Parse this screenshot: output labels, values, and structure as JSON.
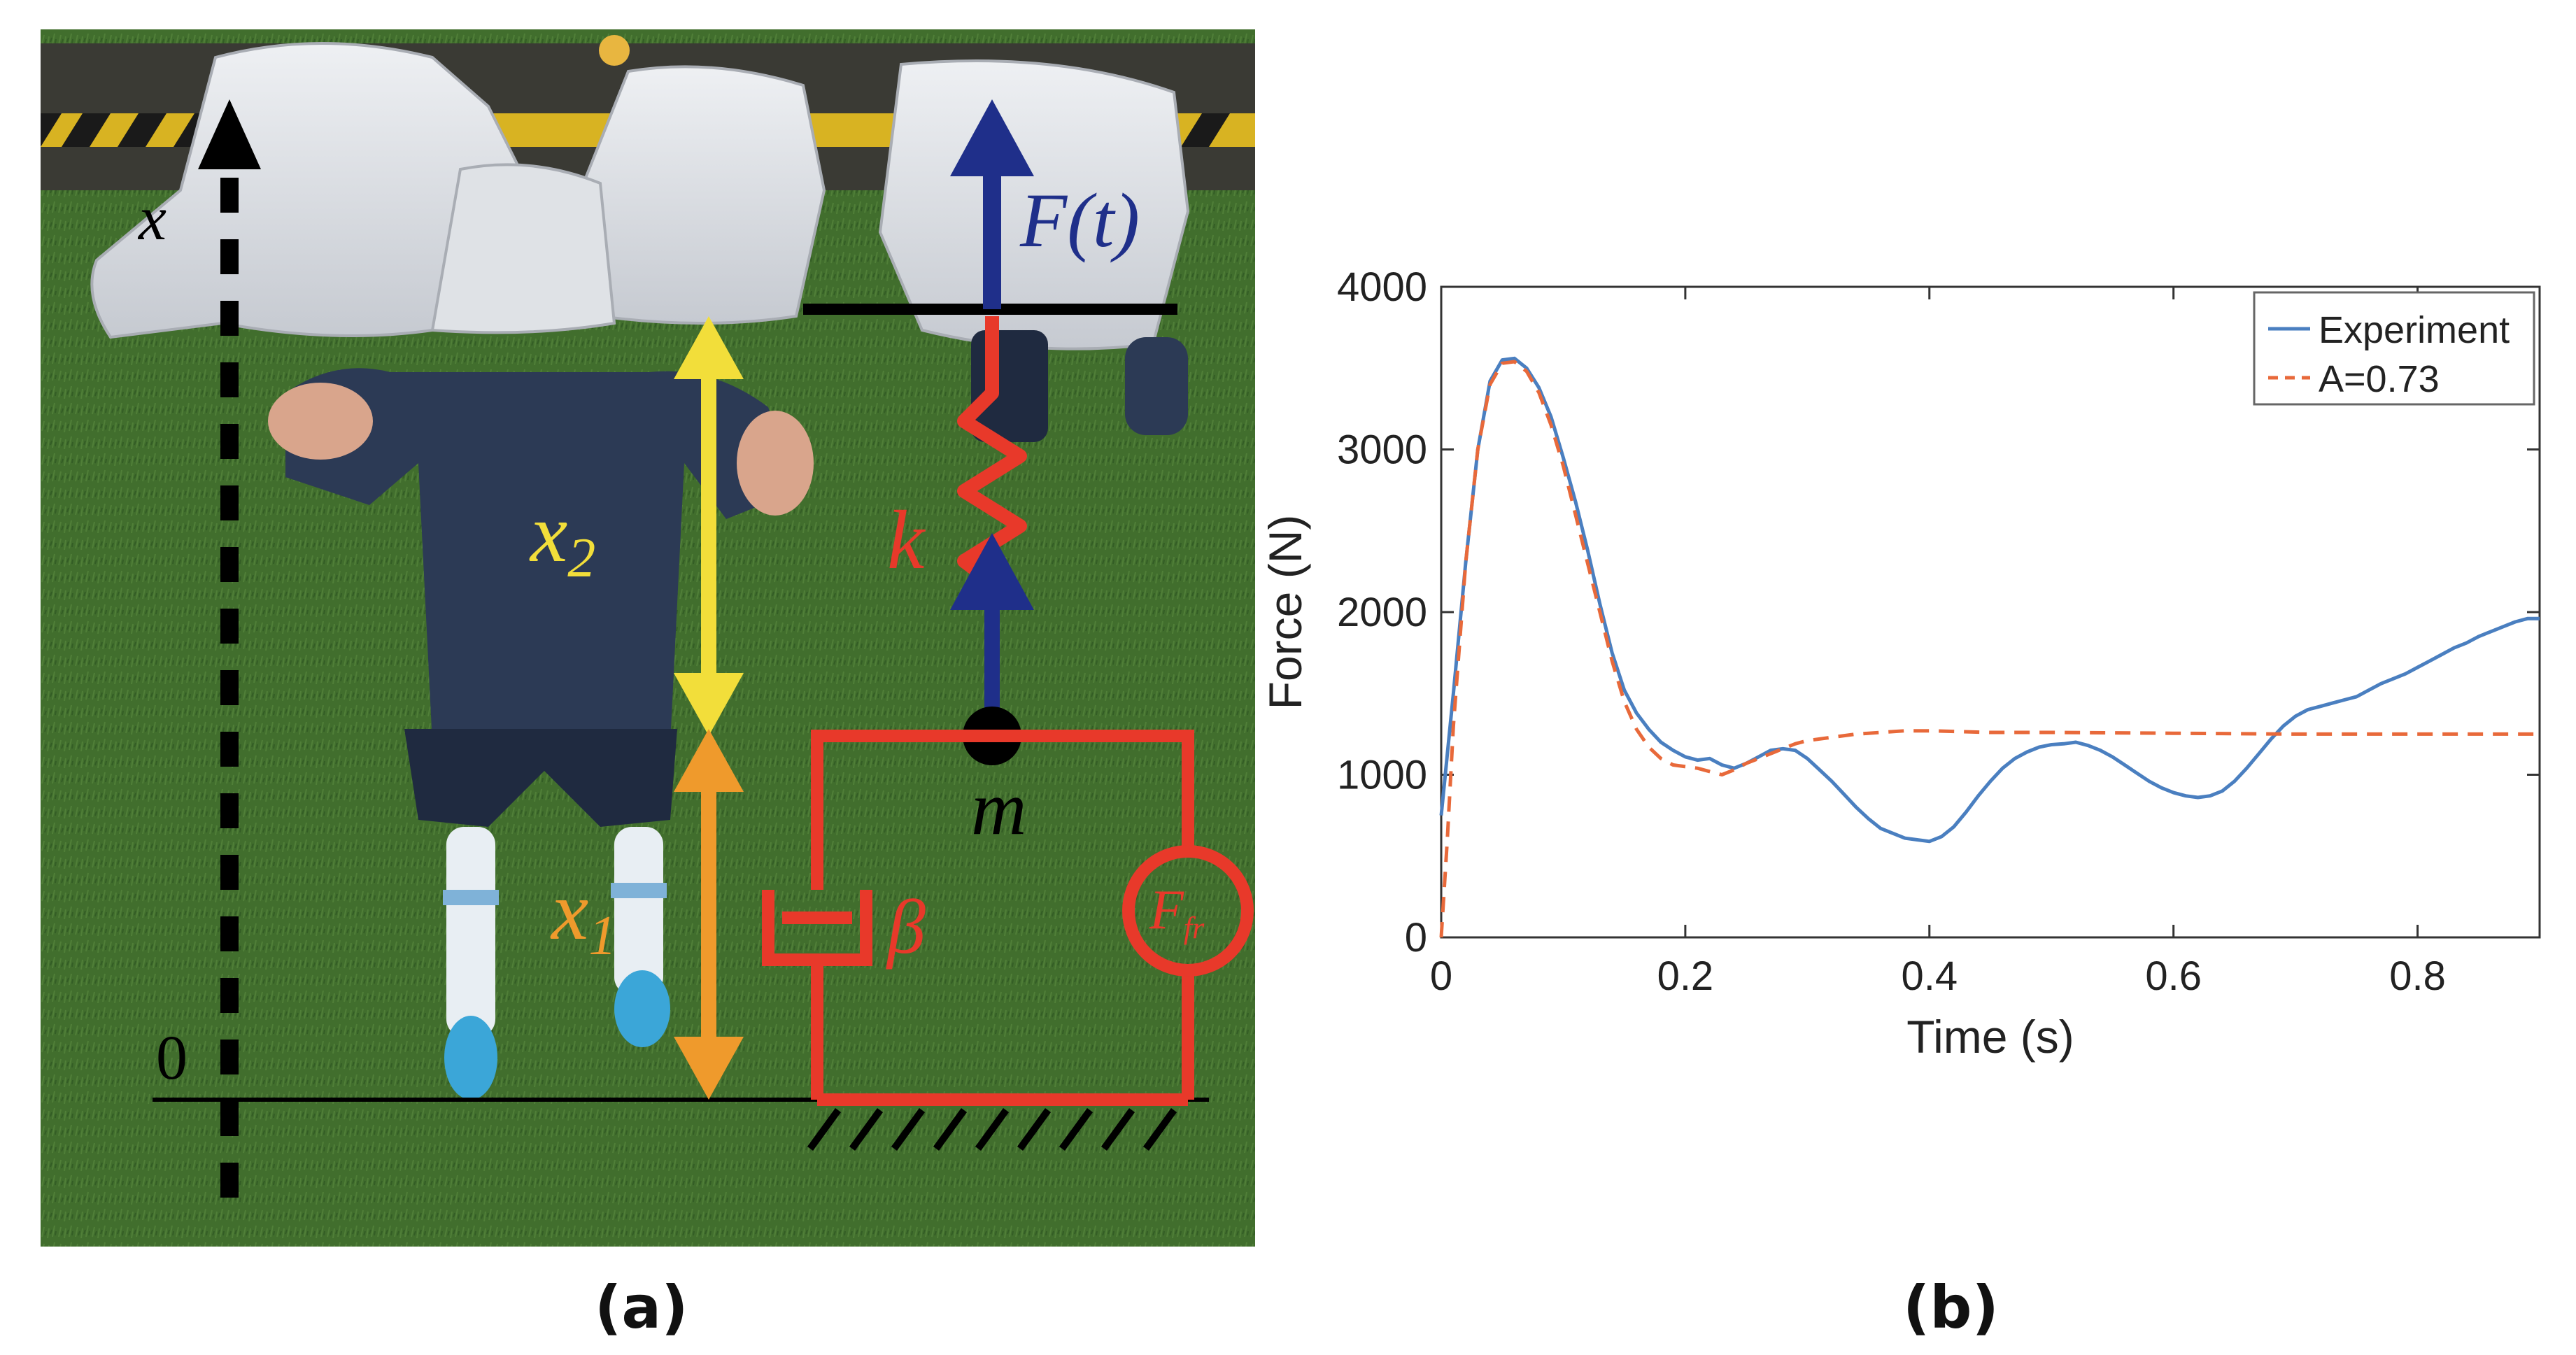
{
  "figure": {
    "panel_a_label": "(a)",
    "panel_b_label": "(b)"
  },
  "diagram": {
    "axis_label": "x",
    "origin_label": "0",
    "force_label": "F(t)",
    "x2_label": "x",
    "x2_sub": "2",
    "x1_label": "x",
    "x1_sub": "1",
    "spring_label": "k",
    "mass_label": "m",
    "damper_label": "β",
    "friction_label": "F",
    "friction_sub": "fr",
    "colors": {
      "axis": "#000000",
      "force": "#1f2f8a",
      "x2": "#f2de3a",
      "x1": "#ef9a2c",
      "mechanism": "#e8392a",
      "grass": "#3f6b2e"
    }
  },
  "chart_data": {
    "type": "line",
    "title": "",
    "xlabel": "Time (s)",
    "ylabel": "Force (N)",
    "xlim": [
      0,
      0.9
    ],
    "ylim": [
      0,
      4000
    ],
    "xticks": [
      0,
      0.2,
      0.4,
      0.6,
      0.8
    ],
    "xtick_labels": [
      "0",
      "0.2",
      "0.4",
      "0.6",
      "0.8"
    ],
    "yticks": [
      0,
      1000,
      2000,
      3000,
      4000
    ],
    "ytick_labels": [
      "0",
      "1000",
      "2000",
      "3000",
      "4000"
    ],
    "grid": false,
    "legend_position": "top-right",
    "series": [
      {
        "name": "Experiment",
        "color": "#4a7fc0",
        "dash": "solid",
        "points": [
          [
            0,
            750
          ],
          [
            0.01,
            1500
          ],
          [
            0.02,
            2300
          ],
          [
            0.03,
            3000
          ],
          [
            0.04,
            3420
          ],
          [
            0.05,
            3550
          ],
          [
            0.06,
            3560
          ],
          [
            0.07,
            3500
          ],
          [
            0.08,
            3380
          ],
          [
            0.09,
            3200
          ],
          [
            0.1,
            2950
          ],
          [
            0.11,
            2680
          ],
          [
            0.12,
            2380
          ],
          [
            0.13,
            2050
          ],
          [
            0.14,
            1750
          ],
          [
            0.15,
            1520
          ],
          [
            0.16,
            1380
          ],
          [
            0.17,
            1280
          ],
          [
            0.18,
            1200
          ],
          [
            0.19,
            1150
          ],
          [
            0.2,
            1110
          ],
          [
            0.21,
            1090
          ],
          [
            0.22,
            1100
          ],
          [
            0.23,
            1060
          ],
          [
            0.24,
            1040
          ],
          [
            0.25,
            1070
          ],
          [
            0.26,
            1110
          ],
          [
            0.27,
            1150
          ],
          [
            0.28,
            1160
          ],
          [
            0.29,
            1150
          ],
          [
            0.3,
            1100
          ],
          [
            0.31,
            1030
          ],
          [
            0.32,
            960
          ],
          [
            0.33,
            880
          ],
          [
            0.34,
            800
          ],
          [
            0.35,
            730
          ],
          [
            0.36,
            670
          ],
          [
            0.37,
            640
          ],
          [
            0.38,
            610
          ],
          [
            0.39,
            600
          ],
          [
            0.4,
            590
          ],
          [
            0.41,
            620
          ],
          [
            0.42,
            680
          ],
          [
            0.43,
            770
          ],
          [
            0.44,
            870
          ],
          [
            0.45,
            960
          ],
          [
            0.46,
            1040
          ],
          [
            0.47,
            1100
          ],
          [
            0.48,
            1140
          ],
          [
            0.49,
            1170
          ],
          [
            0.5,
            1185
          ],
          [
            0.51,
            1190
          ],
          [
            0.52,
            1200
          ],
          [
            0.53,
            1180
          ],
          [
            0.54,
            1150
          ],
          [
            0.55,
            1110
          ],
          [
            0.56,
            1060
          ],
          [
            0.57,
            1010
          ],
          [
            0.58,
            960
          ],
          [
            0.59,
            920
          ],
          [
            0.6,
            890
          ],
          [
            0.61,
            870
          ],
          [
            0.62,
            860
          ],
          [
            0.63,
            870
          ],
          [
            0.64,
            900
          ],
          [
            0.65,
            960
          ],
          [
            0.66,
            1040
          ],
          [
            0.67,
            1130
          ],
          [
            0.68,
            1220
          ],
          [
            0.69,
            1300
          ],
          [
            0.7,
            1360
          ],
          [
            0.71,
            1400
          ],
          [
            0.72,
            1420
          ],
          [
            0.73,
            1440
          ],
          [
            0.74,
            1460
          ],
          [
            0.75,
            1480
          ],
          [
            0.76,
            1520
          ],
          [
            0.77,
            1560
          ],
          [
            0.78,
            1590
          ],
          [
            0.79,
            1620
          ],
          [
            0.8,
            1660
          ],
          [
            0.81,
            1700
          ],
          [
            0.82,
            1740
          ],
          [
            0.83,
            1780
          ],
          [
            0.84,
            1810
          ],
          [
            0.85,
            1850
          ],
          [
            0.86,
            1880
          ],
          [
            0.87,
            1910
          ],
          [
            0.88,
            1940
          ],
          [
            0.89,
            1960
          ],
          [
            0.9,
            1960
          ]
        ]
      },
      {
        "name": "A=0.73",
        "color": "#e8693a",
        "dash": "dashed",
        "points": [
          [
            0,
            0
          ],
          [
            0.005,
            600
          ],
          [
            0.01,
            1300
          ],
          [
            0.02,
            2300
          ],
          [
            0.03,
            3000
          ],
          [
            0.04,
            3400
          ],
          [
            0.05,
            3530
          ],
          [
            0.06,
            3540
          ],
          [
            0.07,
            3480
          ],
          [
            0.08,
            3350
          ],
          [
            0.09,
            3150
          ],
          [
            0.1,
            2900
          ],
          [
            0.11,
            2600
          ],
          [
            0.12,
            2300
          ],
          [
            0.13,
            2000
          ],
          [
            0.14,
            1700
          ],
          [
            0.15,
            1450
          ],
          [
            0.16,
            1280
          ],
          [
            0.17,
            1170
          ],
          [
            0.18,
            1100
          ],
          [
            0.19,
            1060
          ],
          [
            0.2,
            1050
          ],
          [
            0.21,
            1040
          ],
          [
            0.22,
            1020
          ],
          [
            0.23,
            1000
          ],
          [
            0.24,
            1030
          ],
          [
            0.25,
            1070
          ],
          [
            0.26,
            1100
          ],
          [
            0.27,
            1130
          ],
          [
            0.28,
            1160
          ],
          [
            0.29,
            1190
          ],
          [
            0.3,
            1210
          ],
          [
            0.32,
            1230
          ],
          [
            0.34,
            1250
          ],
          [
            0.36,
            1260
          ],
          [
            0.38,
            1270
          ],
          [
            0.4,
            1270
          ],
          [
            0.45,
            1260
          ],
          [
            0.5,
            1260
          ],
          [
            0.6,
            1255
          ],
          [
            0.7,
            1250
          ],
          [
            0.8,
            1250
          ],
          [
            0.9,
            1250
          ]
        ]
      }
    ]
  }
}
